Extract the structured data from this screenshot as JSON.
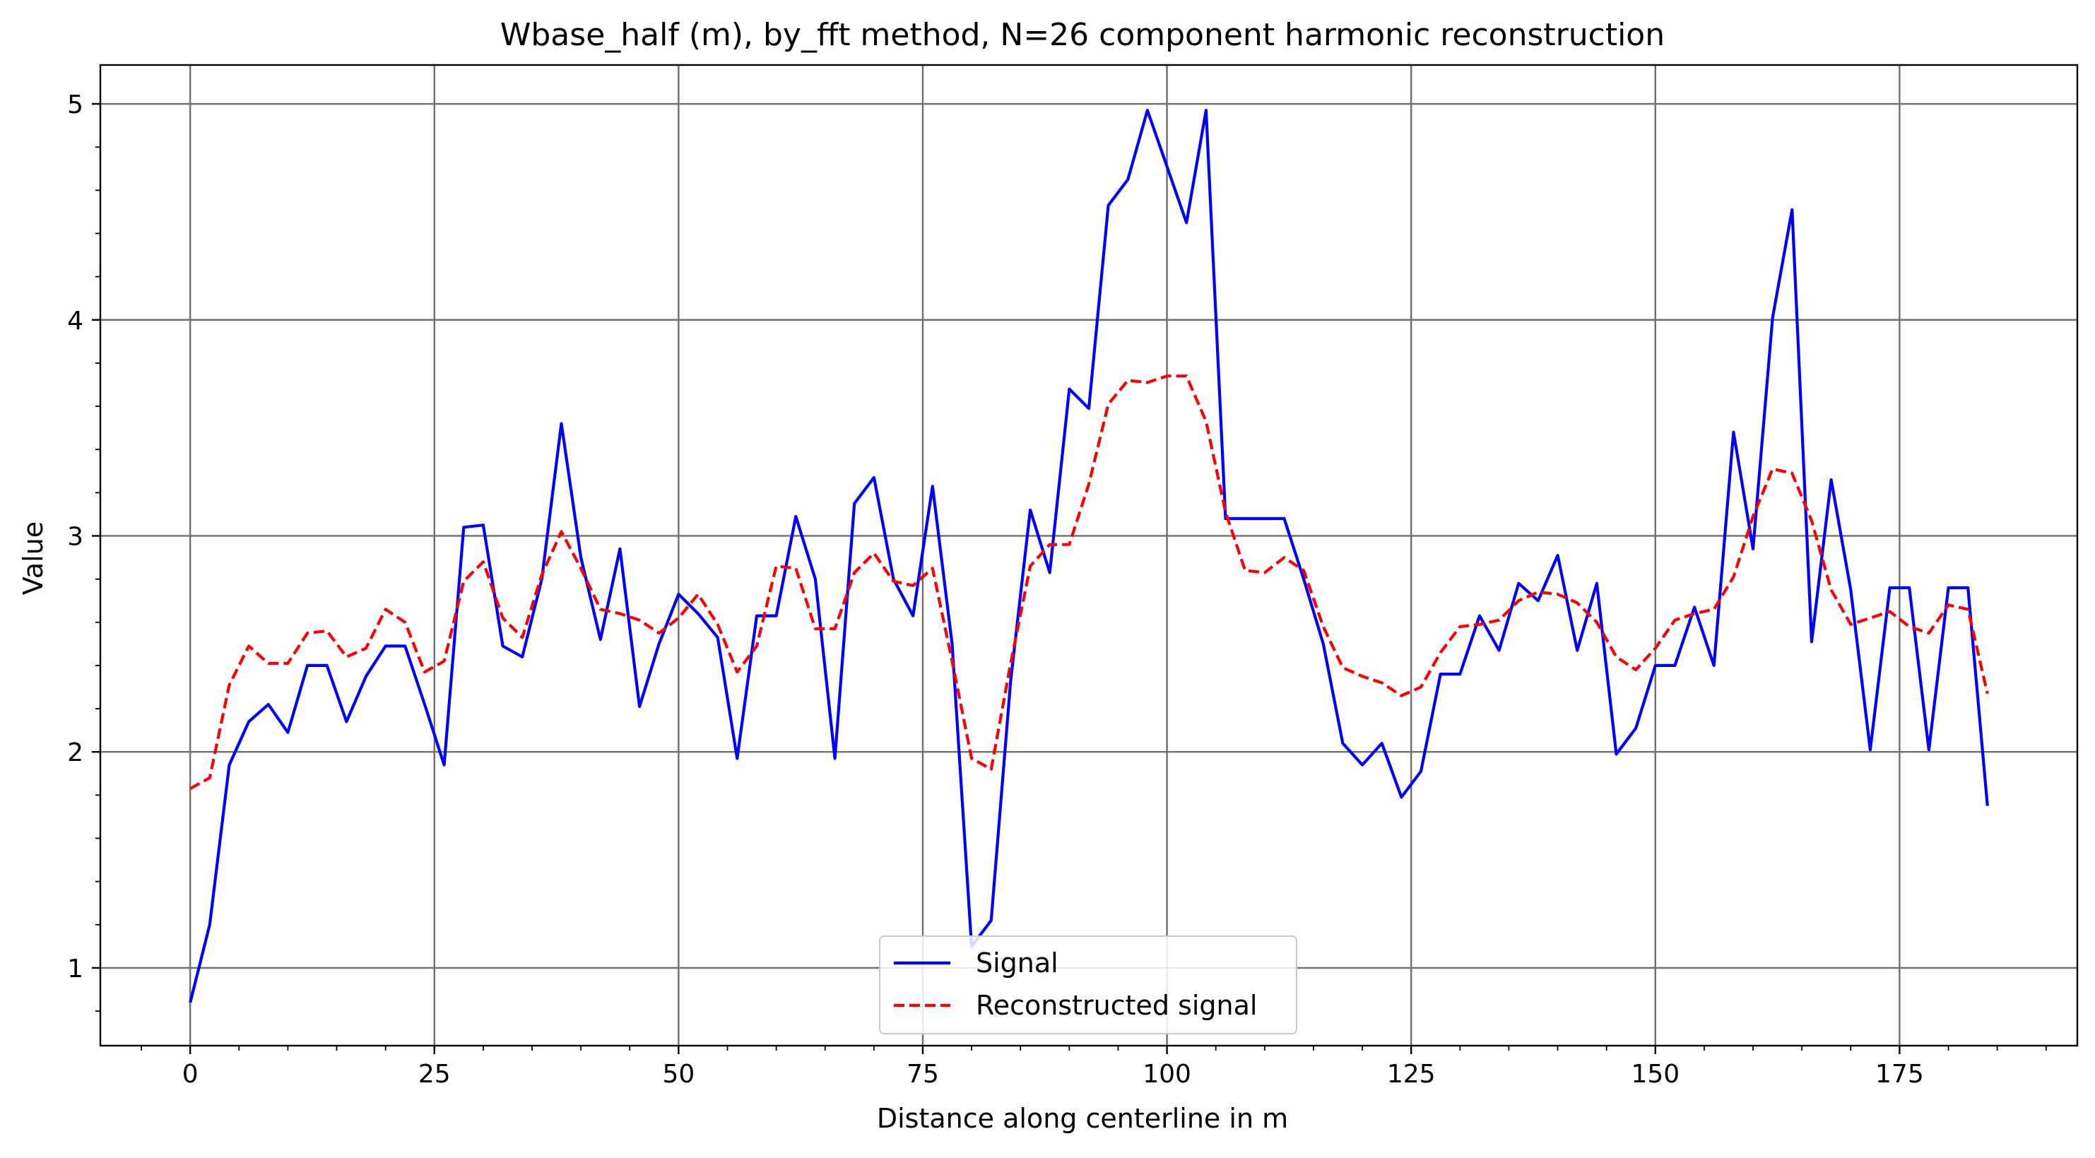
{
  "chart_data": {
    "type": "line",
    "title": "Wbase_half (m), by_fft method, N=26 component harmonic reconstruction",
    "xlabel": "Distance along centerline in m",
    "ylabel": "Value",
    "xlim": [
      -9.2,
      193.2
    ],
    "ylim": [
      0.64,
      5.18
    ],
    "x_ticks": [
      0,
      25,
      50,
      75,
      100,
      125,
      150,
      175
    ],
    "y_ticks": [
      1,
      2,
      3,
      4,
      5
    ],
    "grid": true,
    "legend_position": "bottom-center",
    "series": [
      {
        "name": "Signal",
        "color": "#0000ff",
        "style": "solid",
        "x": [
          0,
          2,
          4,
          6,
          8,
          10,
          12,
          14,
          16,
          18,
          20,
          22,
          24,
          26,
          28,
          30,
          32,
          34,
          36,
          38,
          40,
          42,
          44,
          46,
          48,
          50,
          52,
          54,
          56,
          58,
          60,
          62,
          64,
          66,
          68,
          70,
          72,
          74,
          76,
          78,
          80,
          82,
          84,
          86,
          88,
          90,
          92,
          94,
          96,
          98,
          100,
          102,
          104,
          106,
          108,
          110,
          112,
          114,
          116,
          118,
          120,
          122,
          124,
          126,
          128,
          130,
          132,
          134,
          136,
          138,
          140,
          142,
          144,
          146,
          148,
          150,
          152,
          154,
          156,
          158,
          160,
          162,
          164,
          166,
          168,
          170,
          172,
          174,
          176,
          178,
          180,
          182,
          184
        ],
        "values": [
          0.84,
          1.2,
          1.94,
          2.14,
          2.22,
          2.09,
          2.4,
          2.4,
          2.14,
          2.35,
          2.49,
          2.49,
          2.22,
          1.94,
          3.04,
          3.05,
          2.49,
          2.44,
          2.8,
          3.52,
          2.9,
          2.52,
          2.94,
          2.21,
          2.5,
          2.73,
          2.64,
          2.53,
          1.97,
          2.63,
          2.63,
          3.09,
          2.8,
          1.97,
          3.15,
          3.27,
          2.8,
          2.63,
          3.23,
          2.5,
          1.1,
          1.22,
          2.33,
          3.12,
          2.83,
          3.68,
          3.59,
          4.53,
          4.65,
          4.97,
          4.71,
          4.45,
          4.97,
          3.08,
          3.08,
          3.08,
          3.08,
          2.8,
          2.5,
          2.04,
          1.94,
          2.04,
          1.79,
          1.91,
          2.36,
          2.36,
          2.63,
          2.47,
          2.78,
          2.7,
          2.91,
          2.47,
          2.78,
          1.99,
          2.11,
          2.4,
          2.4,
          2.67,
          2.4,
          3.48,
          2.94,
          4.01,
          4.51,
          2.51,
          3.26,
          2.75,
          2.01,
          2.76,
          2.76,
          2.01,
          2.76,
          2.76,
          1.75
        ]
      },
      {
        "name": "Reconstructed signal",
        "color": "#ff0000",
        "style": "dashed",
        "x": [
          0,
          2,
          4,
          6,
          8,
          10,
          12,
          14,
          16,
          18,
          20,
          22,
          24,
          26,
          28,
          30,
          32,
          34,
          36,
          38,
          40,
          42,
          44,
          46,
          48,
          50,
          52,
          54,
          56,
          58,
          60,
          62,
          64,
          66,
          68,
          70,
          72,
          74,
          76,
          78,
          80,
          82,
          84,
          86,
          88,
          90,
          92,
          94,
          96,
          98,
          100,
          102,
          104,
          106,
          108,
          110,
          112,
          114,
          116,
          118,
          120,
          122,
          124,
          126,
          128,
          130,
          132,
          134,
          136,
          138,
          140,
          142,
          144,
          146,
          148,
          150,
          152,
          154,
          156,
          158,
          160,
          162,
          164,
          166,
          168,
          170,
          172,
          174,
          176,
          178,
          180,
          182,
          184
        ],
        "values": [
          1.83,
          1.88,
          2.31,
          2.49,
          2.41,
          2.41,
          2.55,
          2.56,
          2.44,
          2.48,
          2.66,
          2.6,
          2.37,
          2.42,
          2.79,
          2.88,
          2.62,
          2.53,
          2.82,
          3.02,
          2.85,
          2.66,
          2.64,
          2.61,
          2.55,
          2.62,
          2.73,
          2.59,
          2.37,
          2.49,
          2.86,
          2.85,
          2.57,
          2.57,
          2.83,
          2.92,
          2.79,
          2.77,
          2.85,
          2.42,
          1.97,
          1.92,
          2.41,
          2.86,
          2.96,
          2.96,
          3.24,
          3.61,
          3.72,
          3.71,
          3.74,
          3.74,
          3.53,
          3.11,
          2.84,
          2.83,
          2.9,
          2.84,
          2.58,
          2.39,
          2.35,
          2.32,
          2.26,
          2.3,
          2.46,
          2.58,
          2.59,
          2.61,
          2.7,
          2.74,
          2.73,
          2.69,
          2.6,
          2.44,
          2.38,
          2.48,
          2.61,
          2.64,
          2.66,
          2.81,
          3.09,
          3.31,
          3.29,
          3.07,
          2.75,
          2.59,
          2.62,
          2.65,
          2.58,
          2.55,
          2.68,
          2.66,
          2.27
        ]
      }
    ]
  }
}
